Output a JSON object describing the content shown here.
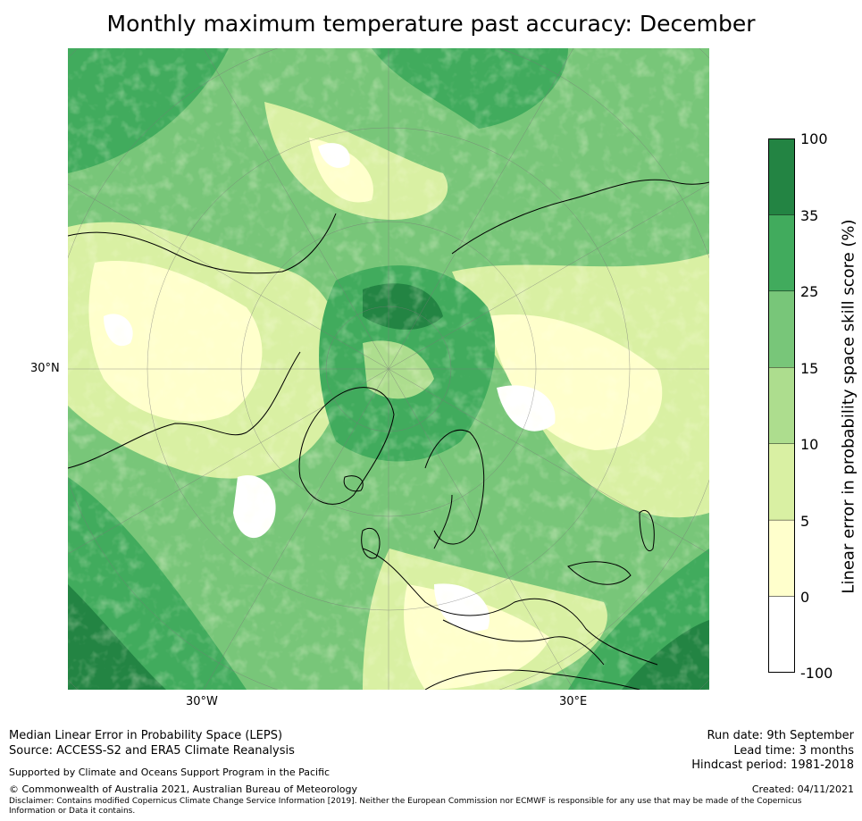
{
  "title": "Monthly maximum temperature past accuracy: December",
  "map": {
    "projection": "north-polar-stereographic",
    "lat_labels": [
      "30°N"
    ],
    "lon_labels": [
      "30°W",
      "30°E"
    ]
  },
  "colorbar": {
    "label": "Linear error in probability space skill score (%)",
    "ticks": [
      "100",
      "35",
      "25",
      "15",
      "10",
      "5",
      "0",
      "-100"
    ],
    "colors": [
      "#238443",
      "#41ab5d",
      "#78c679",
      "#addd8e",
      "#d9f0a3",
      "#ffffcc",
      "#ffffff"
    ]
  },
  "footer": {
    "left_line1": "Median Linear Error in Probability Space (LEPS)",
    "left_line2": "Source: ACCESS-S2 and ERA5 Climate Reanalysis",
    "supported": "Supported by Climate and Oceans Support Program in the Pacific",
    "copyright": "© Commonwealth of Australia 2021, Australian Bureau of Meteorology",
    "disclaimer_line1": "Disclaimer: Contains modified Copernicus Climate Change Service Information [2019]. Neither the European Commission nor ECMWF is responsible for any use that may be made of the Copernicus",
    "disclaimer_line2": "Information or Data it contains.",
    "run_date": "Run date: 9th September",
    "lead_time": "Lead time: 3 months",
    "hindcast": "Hindcast period: 1981-2018",
    "created": "Created: 04/11/2021"
  }
}
